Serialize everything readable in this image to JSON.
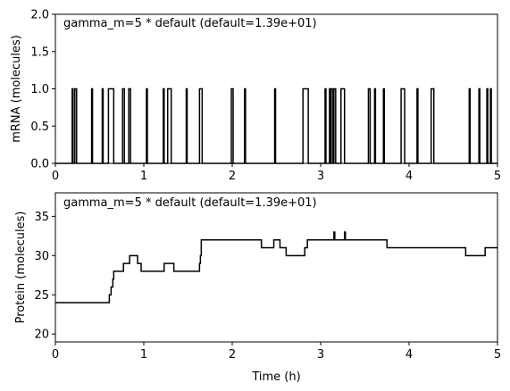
{
  "chart_data": [
    {
      "type": "line",
      "step": true,
      "annotation": "gamma_m=5 * default (default=1.39e+01)",
      "xlabel": "",
      "ylabel": "mRNA (molecules)",
      "xlim": [
        0,
        5
      ],
      "ylim": [
        0,
        2
      ],
      "xticks": [
        "0",
        "1",
        "2",
        "3",
        "4",
        "5"
      ],
      "yticks": [
        "0.0",
        "0.5",
        "1.0",
        "1.5",
        "2.0"
      ],
      "grid": false,
      "color": "#000000",
      "x": [
        0,
        0.19,
        0.19,
        0.2,
        0.2,
        0.22,
        0.22,
        0.24,
        0.24,
        0.41,
        0.41,
        0.42,
        0.42,
        0.53,
        0.53,
        0.54,
        0.54,
        0.6,
        0.6,
        0.66,
        0.66,
        0.76,
        0.76,
        0.78,
        0.78,
        0.83,
        0.83,
        0.85,
        0.85,
        1.03,
        1.03,
        1.04,
        1.04,
        1.22,
        1.22,
        1.23,
        1.23,
        1.27,
        1.27,
        1.31,
        1.31,
        1.48,
        1.48,
        1.49,
        1.49,
        1.63,
        1.63,
        1.66,
        1.66,
        1.99,
        1.99,
        2.01,
        2.01,
        2.14,
        2.14,
        2.15,
        2.15,
        2.48,
        2.48,
        2.49,
        2.49,
        2.8,
        2.8,
        2.86,
        2.86,
        3.05,
        3.05,
        3.06,
        3.06,
        3.1,
        3.1,
        3.11,
        3.11,
        3.12,
        3.12,
        3.14,
        3.14,
        3.15,
        3.15,
        3.17,
        3.17,
        3.23,
        3.23,
        3.27,
        3.27,
        3.54,
        3.54,
        3.56,
        3.56,
        3.61,
        3.61,
        3.62,
        3.62,
        3.71,
        3.71,
        3.72,
        3.72,
        3.91,
        3.91,
        3.95,
        3.95,
        4.09,
        4.09,
        4.1,
        4.1,
        4.25,
        4.25,
        4.28,
        4.28,
        4.68,
        4.68,
        4.69,
        4.69,
        4.79,
        4.79,
        4.8,
        4.8,
        4.88,
        4.88,
        4.89,
        4.89,
        4.92,
        4.92,
        4.93,
        4.93,
        5
      ],
      "y": [
        0,
        0,
        1,
        1,
        0,
        0,
        1,
        1,
        0,
        0,
        1,
        1,
        0,
        0,
        1,
        1,
        0,
        0,
        1,
        1,
        0,
        0,
        1,
        1,
        0,
        0,
        1,
        1,
        0,
        0,
        1,
        1,
        0,
        0,
        1,
        1,
        0,
        0,
        1,
        1,
        0,
        0,
        1,
        1,
        0,
        0,
        1,
        1,
        0,
        0,
        1,
        1,
        0,
        0,
        1,
        1,
        0,
        0,
        1,
        1,
        0,
        0,
        1,
        1,
        0,
        0,
        1,
        1,
        0,
        0,
        1,
        1,
        0,
        0,
        1,
        1,
        0,
        0,
        1,
        1,
        0,
        0,
        1,
        1,
        0,
        0,
        1,
        1,
        0,
        0,
        1,
        1,
        0,
        0,
        1,
        1,
        0,
        0,
        1,
        1,
        0,
        0,
        1,
        1,
        0,
        0,
        1,
        1,
        0,
        0,
        1,
        1,
        0,
        0,
        1,
        1,
        0,
        0,
        1,
        1,
        0,
        0,
        1,
        1,
        0,
        0
      ]
    },
    {
      "type": "line",
      "step": true,
      "annotation": "gamma_m=5 * default (default=1.39e+01)",
      "xlabel": "Time (h)",
      "ylabel": "Protein (molecules)",
      "xlim": [
        0,
        5
      ],
      "ylim": [
        19,
        38
      ],
      "xticks": [
        "0",
        "1",
        "2",
        "3",
        "4",
        "5"
      ],
      "yticks": [
        "20",
        "25",
        "30",
        "35"
      ],
      "grid": false,
      "color": "#000000",
      "x": [
        0,
        0.61,
        0.61,
        0.63,
        0.63,
        0.65,
        0.65,
        0.66,
        0.66,
        0.77,
        0.77,
        0.84,
        0.84,
        0.93,
        0.93,
        0.97,
        0.97,
        1.23,
        1.23,
        1.34,
        1.34,
        1.63,
        1.63,
        1.64,
        1.64,
        1.65,
        1.65,
        1.66,
        1.66,
        2.33,
        2.33,
        2.47,
        2.47,
        2.54,
        2.54,
        2.61,
        2.61,
        2.82,
        2.82,
        2.85,
        2.85,
        3.15,
        3.15,
        3.16,
        3.16,
        3.27,
        3.27,
        3.28,
        3.28,
        3.75,
        3.75,
        4.64,
        4.64,
        4.86,
        4.86,
        5
      ],
      "y": [
        24,
        24,
        25,
        25,
        26,
        26,
        27,
        27,
        28,
        28,
        29,
        29,
        30,
        30,
        29,
        29,
        28,
        28,
        29,
        29,
        28,
        28,
        29,
        29,
        30,
        30,
        32,
        32,
        32,
        32,
        31,
        31,
        32,
        32,
        31,
        31,
        30,
        30,
        31,
        31,
        32,
        32,
        33,
        33,
        32,
        32,
        33,
        33,
        32,
        32,
        31,
        31,
        30,
        30,
        31,
        31
      ]
    }
  ]
}
